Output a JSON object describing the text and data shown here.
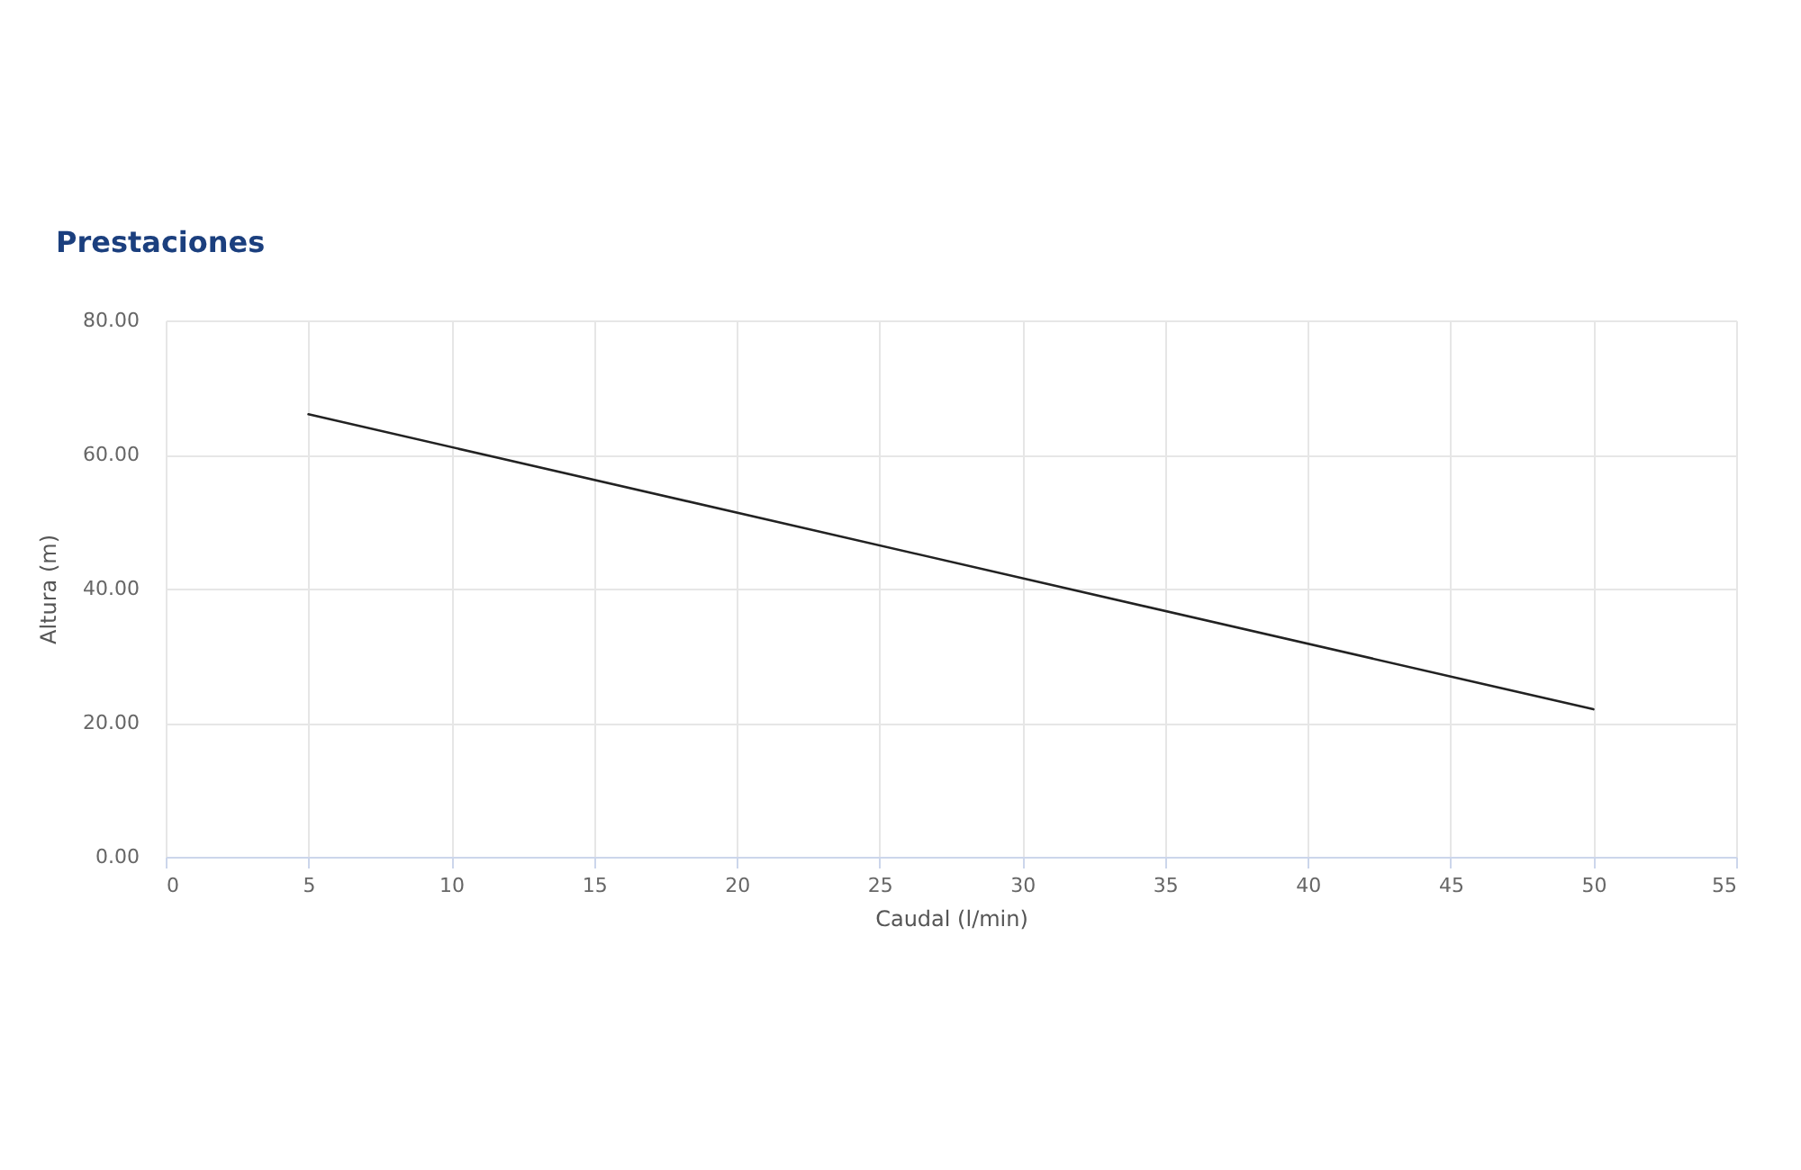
{
  "chart_data": {
    "type": "line",
    "title": "Prestaciones",
    "xlabel": "Caudal (l/min)",
    "ylabel": "Altura (m)",
    "x": [
      5,
      50
    ],
    "series": [
      {
        "color": "#222222",
        "values": [
          66,
          22
        ]
      }
    ],
    "xlim": [
      0,
      55
    ],
    "xticks": [
      0,
      5,
      10,
      15,
      20,
      25,
      30,
      35,
      40,
      45,
      50,
      55
    ],
    "ylim": [
      0,
      80
    ],
    "yticks": [
      {
        "value": 0,
        "label": "0.00"
      },
      {
        "value": 20,
        "label": "20.00"
      },
      {
        "value": 40,
        "label": "40.00"
      },
      {
        "value": 60,
        "label": "60.00"
      },
      {
        "value": 80,
        "label": "80.00"
      }
    ],
    "grid": true
  }
}
